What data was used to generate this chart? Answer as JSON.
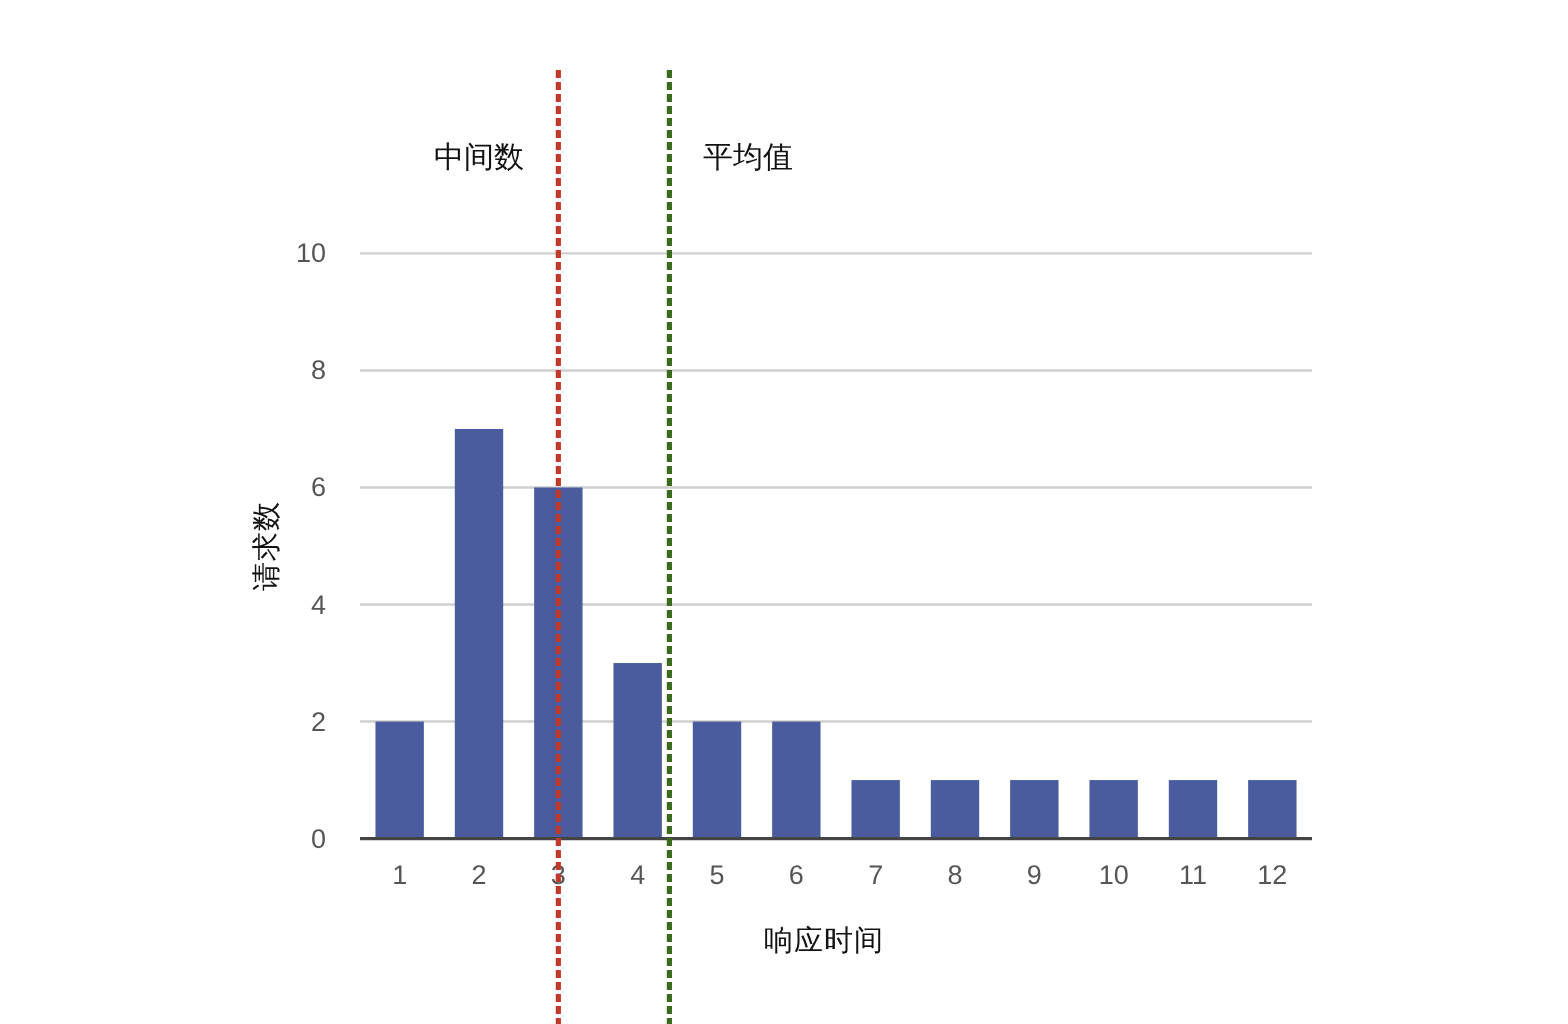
{
  "chart_data": {
    "type": "bar",
    "xlabel": "响应时间",
    "ylabel": "请求数",
    "x": [
      1,
      2,
      3,
      4,
      5,
      6,
      7,
      8,
      9,
      10,
      11,
      12
    ],
    "values": [
      2,
      7,
      6,
      3,
      2,
      2,
      1,
      1,
      1,
      1,
      1,
      1
    ],
    "color": "#4a5c9e",
    "xlim": [
      0.5,
      12.5
    ],
    "xticks": [
      1,
      2,
      3,
      4,
      5,
      6,
      7,
      8,
      9,
      10,
      11,
      12
    ],
    "ylim": [
      0,
      10
    ],
    "yticks": [
      0,
      2,
      4,
      6,
      8,
      10
    ],
    "grid": "y",
    "ref_lines": [
      {
        "axis": "x",
        "value": 3,
        "label": "中间数",
        "color": "#c0392b",
        "line_style": "dotted"
      },
      {
        "axis": "x",
        "value": 4.4,
        "label": "平均值",
        "color": "#3d6b1e",
        "line_style": "dotted"
      }
    ]
  }
}
